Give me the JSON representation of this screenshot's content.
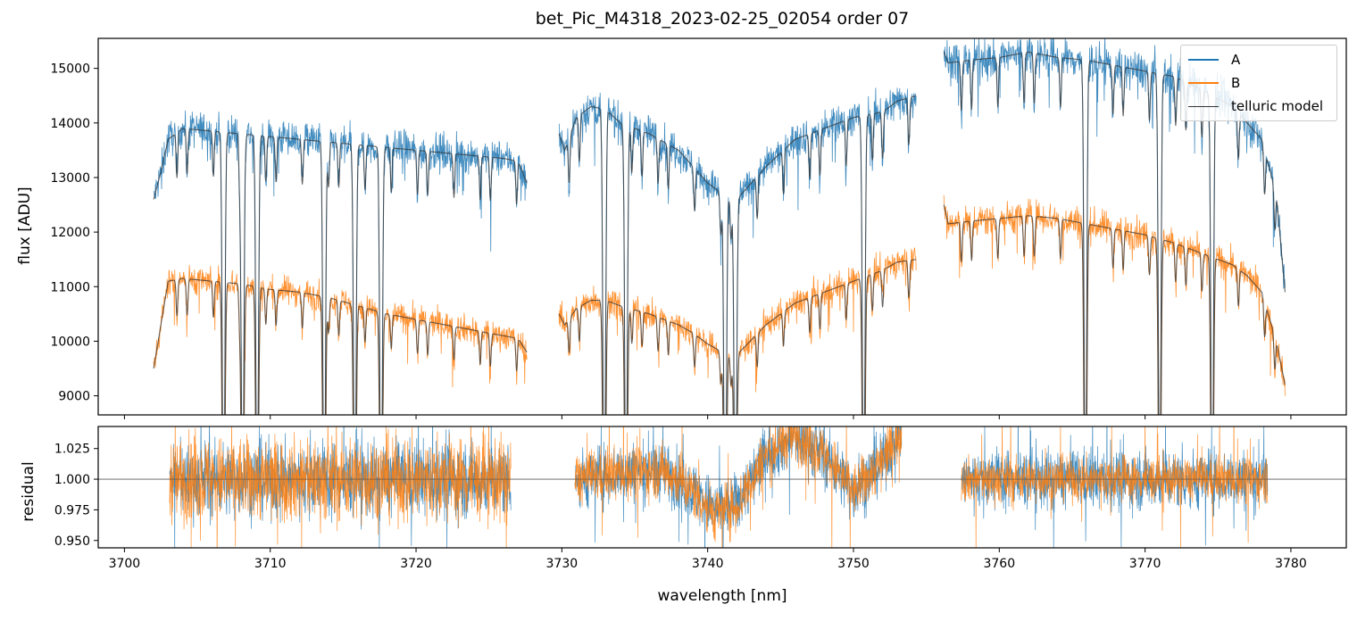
{
  "chart_data": [
    {
      "type": "line",
      "panel": "top",
      "title": "bet_Pic_M4318_2023-02-25_02054  order 07",
      "xlabel": "",
      "ylabel": "flux [ADU]",
      "xlim": [
        3698.2,
        3783.8
      ],
      "ylim": [
        8650,
        15550
      ],
      "yticks": [
        9000,
        10000,
        11000,
        12000,
        13000,
        14000,
        15000
      ],
      "xticks": [
        3700,
        3710,
        3720,
        3730,
        3740,
        3750,
        3760,
        3770,
        3780
      ],
      "legend_position": "top-right",
      "series": [
        {
          "name": "A",
          "color": "#1f77b4",
          "segments": [
            {
              "x": [
                3702.0,
                3702.5,
                3703.0,
                3704,
                3706,
                3708,
                3710,
                3712,
                3714,
                3716,
                3718,
                3720,
                3722,
                3724,
                3726,
                3727.0,
                3727.6
              ],
              "y": [
                12600,
                13100,
                13700,
                13900,
                13850,
                13800,
                13750,
                13700,
                13650,
                13600,
                13550,
                13500,
                13450,
                13400,
                13350,
                13300,
                12900
              ]
            },
            {
              "x": [
                3729.8,
                3730.2,
                3731,
                3732,
                3733,
                3734,
                3736,
                3738,
                3739,
                3740,
                3741,
                3742,
                3744,
                3746,
                3748,
                3750,
                3752,
                3753,
                3754.3
              ],
              "y": [
                13800,
                13500,
                14100,
                14300,
                14250,
                14000,
                13800,
                13500,
                13200,
                12900,
                12700,
                12600,
                13200,
                13700,
                13900,
                14100,
                14200,
                14400,
                14500
              ]
            },
            {
              "x": [
                3756.2,
                3756.5,
                3758,
                3760,
                3762,
                3764,
                3766,
                3768,
                3770,
                3772,
                3774,
                3776,
                3777,
                3778,
                3779,
                3779.6
              ],
              "y": [
                15300,
                15100,
                15150,
                15200,
                15300,
                15200,
                15150,
                15050,
                14950,
                14850,
                14600,
                14300,
                14000,
                13700,
                12700,
                10900
              ]
            }
          ]
        },
        {
          "name": "B",
          "color": "#ff7f0e",
          "segments": [
            {
              "x": [
                3702.0,
                3702.5,
                3703.0,
                3704,
                3706,
                3708,
                3710,
                3712,
                3714,
                3716,
                3718,
                3720,
                3722,
                3724,
                3726,
                3727.0,
                3727.6
              ],
              "y": [
                9500,
                10300,
                11100,
                11150,
                11100,
                11050,
                10950,
                10900,
                10800,
                10650,
                10500,
                10400,
                10300,
                10200,
                10100,
                10050,
                9800
              ]
            },
            {
              "x": [
                3729.8,
                3730.2,
                3731,
                3732,
                3733,
                3734,
                3736,
                3738,
                3739,
                3740,
                3741,
                3742,
                3744,
                3746,
                3748,
                3750,
                3752,
                3753,
                3754.3
              ],
              "y": [
                10500,
                10300,
                10600,
                10750,
                10750,
                10650,
                10500,
                10300,
                10150,
                9950,
                9800,
                9750,
                10300,
                10700,
                10900,
                11100,
                11300,
                11450,
                11500
              ]
            },
            {
              "x": [
                3756.2,
                3756.5,
                3758,
                3760,
                3762,
                3764,
                3766,
                3768,
                3770,
                3772,
                3774,
                3776,
                3777,
                3778,
                3779,
                3779.6
              ],
              "y": [
                12500,
                12150,
                12200,
                12250,
                12300,
                12250,
                12150,
                12050,
                11950,
                11800,
                11600,
                11400,
                11200,
                10900,
                10000,
                9200
              ]
            }
          ]
        },
        {
          "name": "telluric model",
          "color": "#333333",
          "lines": [
            3706.8,
            3708.1,
            3709.1,
            3713.7,
            3715.8,
            3717.6,
            3732.9,
            3734.4,
            3741.2,
            3741.9,
            3750.7,
            3765.9,
            3771.0,
            3774.6
          ]
        }
      ]
    },
    {
      "type": "line",
      "panel": "bottom",
      "xlabel": "wavelength [nm]",
      "ylabel": "residual",
      "xlim": [
        3698.2,
        3783.8
      ],
      "ylim": [
        0.944,
        1.043
      ],
      "yticks": [
        0.95,
        0.975,
        1.0,
        1.025
      ],
      "ytick_labels": [
        "0.950",
        "0.975",
        "1.000",
        "1.025"
      ],
      "xticks": [
        3700,
        3710,
        3720,
        3730,
        3740,
        3750,
        3760,
        3770,
        3780
      ],
      "reference_line": 1.0,
      "series": [
        {
          "name": "A",
          "color": "#1f77b4",
          "segments": [
            {
              "x": [
                3703.1,
                3726.5
              ],
              "noise": 0.025
            },
            {
              "x": [
                3730.9,
                3753.3
              ],
              "noise": 0.02,
              "trend_x": [
                3730.9,
                3734,
                3737,
                3739,
                3740.5,
                3742,
                3744,
                3746,
                3748,
                3750,
                3752,
                3753.3
              ],
              "trend_y": [
                1.0,
                1.005,
                1.008,
                0.99,
                0.975,
                0.98,
                1.02,
                1.035,
                1.02,
                0.99,
                1.015,
                1.04
              ]
            },
            {
              "x": [
                3757.4,
                3778.4
              ],
              "noise": 0.02
            }
          ]
        },
        {
          "name": "B",
          "color": "#ff7f0e",
          "segments": [
            {
              "x": [
                3703.1,
                3726.5
              ],
              "noise": 0.028
            },
            {
              "x": [
                3730.9,
                3753.3
              ],
              "noise": 0.018,
              "trend_x": [
                3730.9,
                3734,
                3737,
                3739,
                3740.5,
                3742,
                3744,
                3746,
                3748,
                3750,
                3752,
                3753.3
              ],
              "trend_y": [
                1.0,
                1.005,
                1.008,
                0.99,
                0.972,
                0.978,
                1.02,
                1.037,
                1.02,
                0.99,
                1.015,
                1.04
              ]
            },
            {
              "x": [
                3757.4,
                3778.4
              ],
              "noise": 0.015
            }
          ]
        }
      ]
    }
  ]
}
